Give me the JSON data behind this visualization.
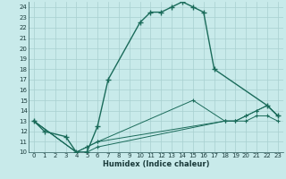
{
  "xlabel": "Humidex (Indice chaleur)",
  "background_color": "#c8eaea",
  "grid_color": "#a8d0d0",
  "line_color": "#1a6b5a",
  "xlim": [
    -0.5,
    23.5
  ],
  "ylim": [
    10,
    24.5
  ],
  "xticks": [
    0,
    1,
    2,
    3,
    4,
    5,
    6,
    7,
    8,
    9,
    10,
    11,
    12,
    13,
    14,
    15,
    16,
    17,
    18,
    19,
    20,
    21,
    22,
    23
  ],
  "yticks": [
    10,
    11,
    12,
    13,
    14,
    15,
    16,
    17,
    18,
    19,
    20,
    21,
    22,
    23,
    24
  ],
  "main_curve": {
    "x": [
      0,
      1,
      3,
      4,
      5,
      6,
      7,
      10,
      11,
      12,
      13,
      14,
      15,
      16,
      17,
      22,
      23
    ],
    "y": [
      13.0,
      12.0,
      11.5,
      10.0,
      10.0,
      12.5,
      17.0,
      22.5,
      23.5,
      23.5,
      24.0,
      24.5,
      24.0,
      23.5,
      18.0,
      14.5,
      13.5
    ]
  },
  "sub_curves": [
    {
      "x": [
        0,
        4,
        5,
        6,
        15,
        18,
        19,
        20,
        21,
        22,
        23
      ],
      "y": [
        13.0,
        10.0,
        10.5,
        11.0,
        15.0,
        13.0,
        13.0,
        13.5,
        14.0,
        14.5,
        13.5
      ]
    },
    {
      "x": [
        0,
        4,
        5,
        6,
        18,
        19,
        20,
        21,
        22,
        23
      ],
      "y": [
        13.0,
        10.0,
        10.5,
        11.0,
        13.0,
        13.0,
        13.5,
        14.0,
        14.5,
        13.5
      ]
    },
    {
      "x": [
        0,
        4,
        5,
        6,
        18,
        19,
        20,
        21,
        22,
        23
      ],
      "y": [
        13.0,
        10.0,
        10.0,
        10.5,
        13.0,
        13.0,
        13.0,
        13.5,
        13.5,
        13.0
      ]
    }
  ]
}
